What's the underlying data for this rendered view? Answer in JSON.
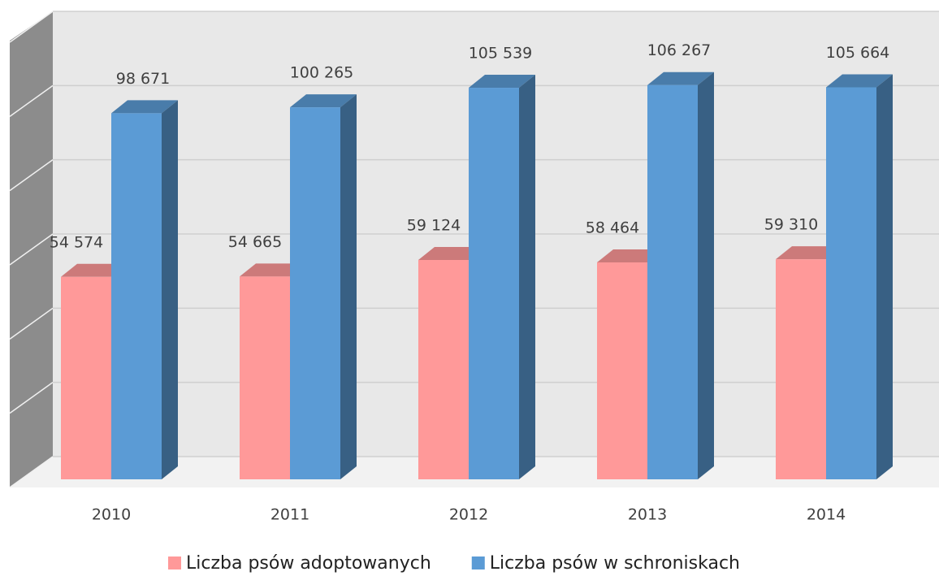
{
  "chart_data": {
    "type": "bar3d",
    "categories": [
      "2010",
      "2011",
      "2012",
      "2013",
      "2014"
    ],
    "series": [
      {
        "name": "Liczba psów adoptowanych",
        "color": "#ff9999",
        "values": [
          54574,
          54665,
          59124,
          58464,
          59310
        ],
        "value_labels": [
          "54 574",
          "54 665",
          "59 124",
          "58 464",
          "59 310"
        ]
      },
      {
        "name": "Liczba psów w schroniskach",
        "color": "#5b9bd5",
        "values": [
          98671,
          100265,
          105539,
          106267,
          105664
        ],
        "value_labels": [
          "98 671",
          "100 265",
          "105 539",
          "106 267",
          "105 664"
        ]
      }
    ],
    "ylim": [
      0,
      120000
    ],
    "yticks": [
      0,
      20000,
      40000,
      60000,
      80000,
      100000,
      120000
    ],
    "grid": true,
    "legend": "bottom"
  }
}
